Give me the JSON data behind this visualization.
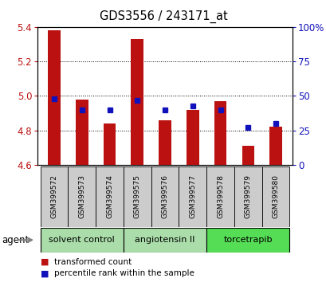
{
  "title": "GDS3556 / 243171_at",
  "samples": [
    "GSM399572",
    "GSM399573",
    "GSM399574",
    "GSM399575",
    "GSM399576",
    "GSM399577",
    "GSM399578",
    "GSM399579",
    "GSM399580"
  ],
  "transformed_counts": [
    5.38,
    4.98,
    4.84,
    5.33,
    4.86,
    4.92,
    4.97,
    4.71,
    4.82
  ],
  "percentile_ranks": [
    48,
    40,
    40,
    47,
    40,
    43,
    40,
    27,
    30
  ],
  "ylim": [
    4.6,
    5.4
  ],
  "yticks": [
    4.6,
    4.8,
    5.0,
    5.2,
    5.4
  ],
  "y2ticks": [
    0,
    25,
    50,
    75,
    100
  ],
  "bar_color": "#bb1111",
  "dot_color": "#1111bb",
  "groups": [
    {
      "label": "solvent control",
      "indices": [
        0,
        1,
        2
      ],
      "color": "#aaddaa"
    },
    {
      "label": "angiotensin II",
      "indices": [
        3,
        4,
        5
      ],
      "color": "#aaddaa"
    },
    {
      "label": "torcetrapib",
      "indices": [
        6,
        7,
        8
      ],
      "color": "#55dd55"
    }
  ],
  "agent_label": "agent",
  "legend_red": "transformed count",
  "legend_blue": "percentile rank within the sample",
  "baseline": 4.6,
  "bg_sample_labels": "#cccccc",
  "bar_width": 0.45
}
